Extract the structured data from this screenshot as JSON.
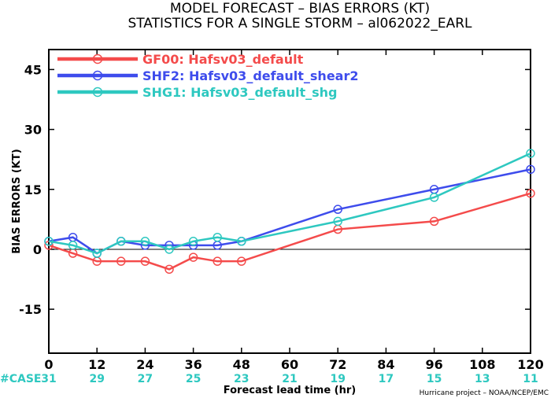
{
  "chart_data": {
    "type": "line",
    "title": "MODEL FORECAST – BIAS ERRORS (KT)",
    "subtitle": "STATISTICS FOR A SINGLE STORM – al062022_EARL",
    "xlabel": "Forecast lead time (hr)",
    "ylabel": "BIAS ERRORS (KT)",
    "xlim": [
      0,
      120
    ],
    "ylim": [
      -26,
      50
    ],
    "x_ticks": [
      "0",
      "12",
      "24",
      "36",
      "48",
      "60",
      "72",
      "84",
      "96",
      "108",
      "120"
    ],
    "y_ticks": [
      "45",
      "30",
      "15",
      "0",
      "-15"
    ],
    "y_tick_values": [
      45,
      30,
      15,
      0,
      -15
    ],
    "zero_line": true,
    "grid": false,
    "legend_position": "top-left",
    "series": [
      {
        "name": "GF00: Hafsv03_default",
        "color": "#f44b4b",
        "x": [
          0,
          6,
          12,
          18,
          24,
          30,
          36,
          42,
          48,
          72,
          96,
          120
        ],
        "y": [
          1,
          -1,
          -3,
          -3,
          -3,
          -5,
          -2,
          -3,
          -3,
          5,
          7,
          14
        ]
      },
      {
        "name": "SHF2: Hafsv03_default_shear2",
        "color": "#3e4cec",
        "x": [
          0,
          6,
          12,
          18,
          24,
          30,
          36,
          42,
          48,
          72,
          96,
          120
        ],
        "y": [
          2,
          3,
          -1,
          2,
          1,
          1,
          1,
          1,
          2,
          10,
          15,
          20
        ]
      },
      {
        "name": "SHG1: Hafsv03_default_shg",
        "color": "#2ec8c0",
        "x": [
          0,
          6,
          12,
          18,
          24,
          30,
          36,
          42,
          48,
          72,
          96,
          120
        ],
        "y": [
          2,
          1,
          -1,
          2,
          2,
          0,
          2,
          3,
          2,
          7,
          13,
          24
        ]
      }
    ],
    "case_label": "#CASE",
    "case_counts": [
      "31",
      "29",
      "27",
      "25",
      "23",
      "21",
      "19",
      "17",
      "15",
      "13",
      "11"
    ],
    "case_color": "#2ec8c0"
  },
  "footer": {
    "credit": "Hurricane project – NOAA/NCEP/EMC"
  }
}
